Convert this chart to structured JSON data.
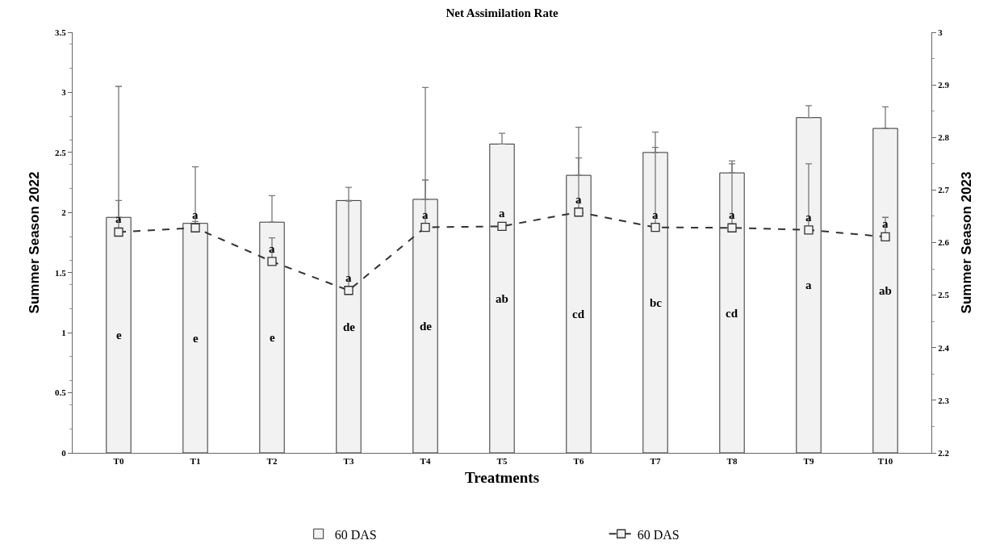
{
  "chart_data": {
    "type": "bar",
    "title": "Net Assimilation Rate",
    "xlabel": "Treatments",
    "ylabel": "Summer Season 2022",
    "y2label": "Summer Season 2023",
    "categories": [
      "T0",
      "T1",
      "T2",
      "T3",
      "T4",
      "T5",
      "T6",
      "T7",
      "T8",
      "T9",
      "T10"
    ],
    "series": [
      {
        "name": "60 DAS",
        "color": "#f2f2f2",
        "values": [
          1.96,
          1.91,
          1.92,
          2.1,
          2.11,
          2.57,
          2.31,
          2.5,
          2.33,
          2.79,
          2.7
        ],
        "errors": [
          [
            1.96,
            3.05
          ],
          [
            1.91,
            2.38
          ],
          [
            1.92,
            2.14
          ],
          [
            2.1,
            2.21
          ],
          [
            2.11,
            3.04
          ],
          [
            2.57,
            2.66
          ],
          [
            2.31,
            2.71
          ],
          [
            2.5,
            2.67
          ],
          [
            2.33,
            2.43
          ],
          [
            2.79,
            2.89
          ],
          [
            2.7,
            2.88
          ]
        ],
        "value_labels": [
          "e",
          "e",
          "e",
          "de",
          "de",
          "ab",
          "cd",
          "bc",
          "cd",
          "a",
          "ab"
        ]
      },
      {
        "name": "60 DAS",
        "type": "line",
        "axis": "y2",
        "color": "#333333",
        "marker": "square",
        "line_style": "dashed",
        "values": [
          2.62,
          2.628,
          2.564,
          2.509,
          2.629,
          2.631,
          2.658,
          2.629,
          2.628,
          2.624,
          2.611
        ],
        "errors": [
          [
            2.62,
            2.68
          ],
          [
            2.628,
            2.64
          ],
          [
            2.564,
            2.609
          ],
          [
            2.509,
            2.679
          ],
          [
            2.629,
            2.719
          ],
          [
            2.631,
            2.637
          ],
          [
            2.658,
            2.761
          ],
          [
            2.629,
            2.781
          ],
          [
            2.628,
            2.75
          ],
          [
            2.624,
            2.75
          ],
          [
            2.611,
            2.648
          ]
        ],
        "value_labels": [
          "a",
          "a",
          "a",
          "a",
          "a",
          "a",
          "a",
          "a",
          "a",
          "a",
          "a"
        ]
      }
    ],
    "ylim": [
      0,
      3.5
    ],
    "yticks": [
      0,
      0.5,
      1,
      1.5,
      2,
      2.5,
      3,
      3.5
    ],
    "y2lim": [
      2.2,
      3
    ],
    "y2ticks": [
      2.2,
      2.3,
      2.4,
      2.5,
      2.6,
      2.7,
      2.8,
      2.9,
      3
    ],
    "legend": "bottom"
  }
}
